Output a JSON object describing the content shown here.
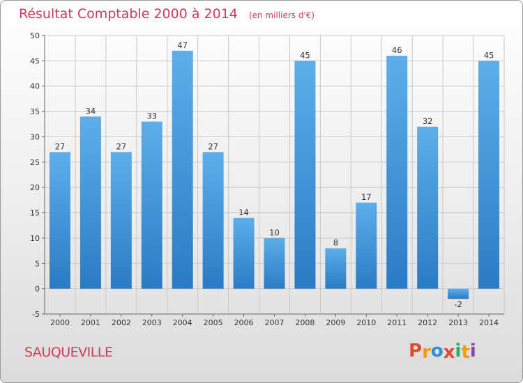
{
  "header": {
    "title": "Résultat Comptable 2000 à 2014",
    "unit": "(en milliers d'€)"
  },
  "footer": {
    "commune": "SAUQUEVILLE",
    "logo_letters": [
      "P",
      "r",
      "o",
      "x",
      "i",
      "t",
      "i"
    ],
    "logo_colors": [
      "#e8462f",
      "#f39c12",
      "#2f8fd8",
      "#e8462f",
      "#27ae60",
      "#f39c12",
      "#8e44ad"
    ]
  },
  "colors": {
    "bar_top": "#5daeea",
    "bar_bottom": "#2b7bc4",
    "grid": "#c8c8c8",
    "title": "#d03a5a"
  },
  "chart_data": {
    "type": "bar",
    "title": "Résultat Comptable 2000 à 2014",
    "subtitle": "(en milliers d'€)",
    "categories": [
      "2000",
      "2001",
      "2002",
      "2003",
      "2004",
      "2005",
      "2006",
      "2007",
      "2008",
      "2009",
      "2010",
      "2011",
      "2012",
      "2013",
      "2014"
    ],
    "values": [
      27,
      34,
      27,
      33,
      47,
      27,
      14,
      10,
      45,
      8,
      17,
      46,
      32,
      -2,
      45
    ],
    "ylim": [
      -5,
      50
    ],
    "yticks": [
      -5,
      0,
      5,
      10,
      15,
      20,
      25,
      30,
      35,
      40,
      45,
      50
    ],
    "grid": true,
    "xlabel": "",
    "ylabel": ""
  }
}
